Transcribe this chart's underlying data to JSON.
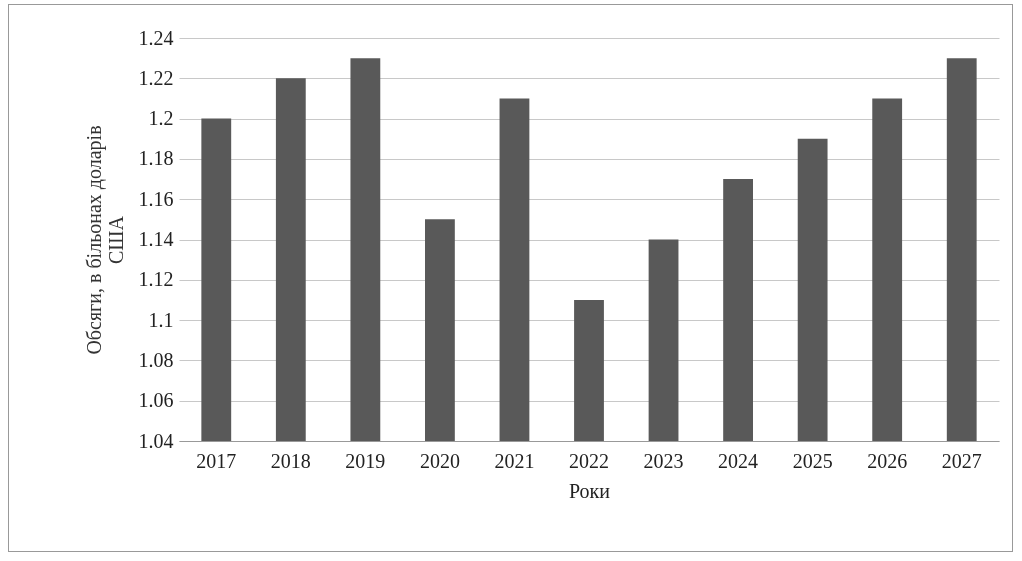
{
  "chart_data": {
    "type": "bar",
    "xlabel": "Роки",
    "ylabel": "Обсяги, в більонах доларів США",
    "categories": [
      "2017",
      "2018",
      "2019",
      "2020",
      "2021",
      "2022",
      "2023",
      "2024",
      "2025",
      "2026",
      "2027"
    ],
    "values": [
      1.2,
      1.22,
      1.23,
      1.15,
      1.21,
      1.11,
      1.14,
      1.17,
      1.19,
      1.21,
      1.23
    ],
    "color": "#595959",
    "ylim": [
      1.04,
      1.24
    ],
    "yticks": [
      1.04,
      1.06,
      1.08,
      1.1,
      1.12,
      1.14,
      1.16,
      1.18,
      1.2,
      1.22,
      1.24
    ],
    "grid": "y"
  }
}
